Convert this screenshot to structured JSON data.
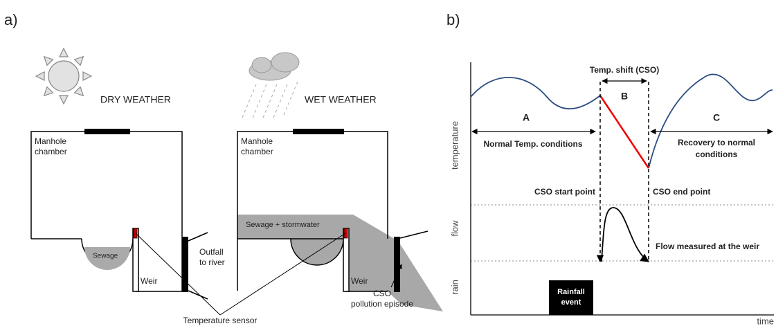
{
  "panel_a": {
    "label": "a)",
    "dry": {
      "title": "DRY WEATHER",
      "chamber": [
        "Manhole",
        "chamber"
      ],
      "sewage": "Sewage",
      "weir": "Weir",
      "outfall": [
        "Outfall",
        "to river"
      ]
    },
    "wet": {
      "title": "WET WEATHER",
      "chamber": [
        "Manhole",
        "chamber"
      ],
      "mix": "Sewage + stormwater",
      "weir": "Weir",
      "cso": [
        "CSO",
        "pollution episode"
      ]
    },
    "sensor": "Temperature sensor"
  },
  "panel_b": {
    "label": "b)",
    "shift": "Temp. shift (CSO)",
    "phases": [
      "A",
      "B",
      "C"
    ],
    "normal": "Normal Temp. conditions",
    "recovery": [
      "Recovery to normal",
      "conditions"
    ],
    "start": "CSO start point",
    "end": "CSO end point",
    "flow_note": "Flow measured at the weir",
    "rainfall": [
      "Rainfall",
      "event"
    ],
    "axes": [
      "temperature",
      "flow",
      "rain",
      "time"
    ]
  }
}
